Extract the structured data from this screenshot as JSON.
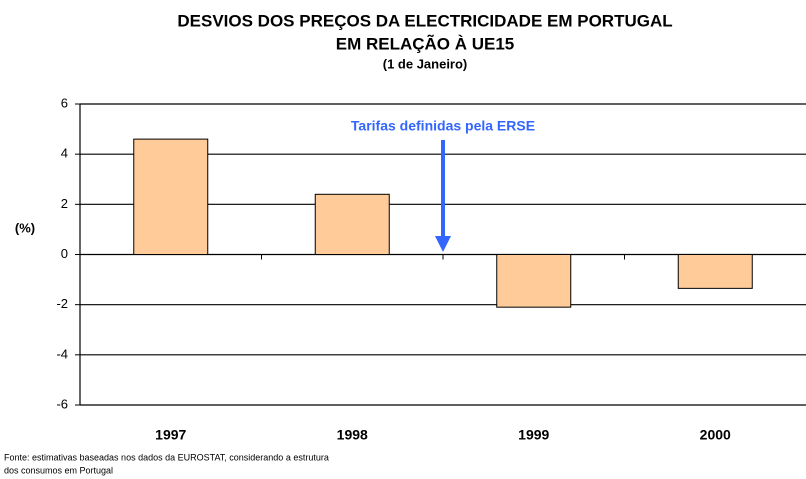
{
  "chart_data": {
    "type": "bar",
    "title": [
      "DESVIOS DOS PREÇOS DA ELECTRICIDADE EM PORTUGAL",
      "EM RELAÇÃO À UE15"
    ],
    "subtitle": "(1 de Janeiro)",
    "y_label": "(%)",
    "categories": [
      "1997",
      "1998",
      "1999",
      "2000"
    ],
    "values": [
      4.6,
      2.4,
      -2.1,
      -1.35
    ],
    "color": "#ffcc99",
    "ylim": [
      -6,
      6
    ],
    "yticks": [
      -6,
      -4,
      -2,
      0,
      2,
      4,
      6
    ],
    "grid": true,
    "annotation": {
      "text": "Tarifas definidas pela ERSE",
      "color": "#3366ff"
    },
    "source": [
      "Fonte: estimativas baseadas nos dados da EUROSTAT, considerando a estrutura",
      "dos consumos em Portugal"
    ]
  }
}
